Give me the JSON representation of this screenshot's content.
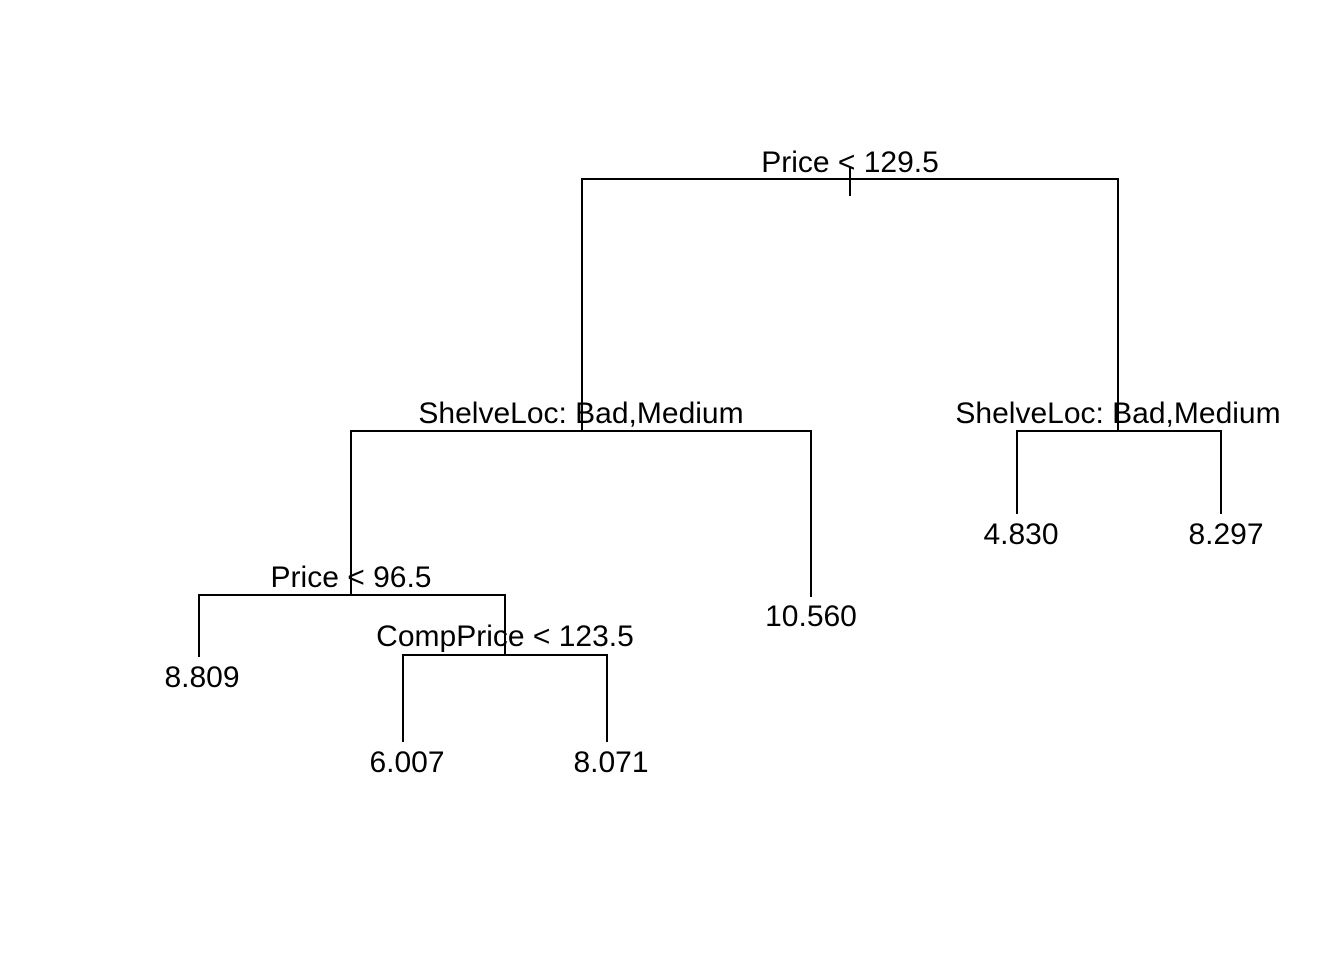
{
  "tree": {
    "nodes": {
      "root": {
        "split": "Price < 129.5",
        "left": "n_left",
        "right": "n_right"
      },
      "n_left": {
        "split": "ShelveLoc: Bad,Medium",
        "left": "n_ll",
        "right": "leaf_10560"
      },
      "n_right": {
        "split": "ShelveLoc: Bad,Medium",
        "left": "leaf_4830",
        "right": "leaf_8297"
      },
      "n_ll": {
        "split": "Price < 96.5",
        "left": "leaf_8809",
        "right": "n_llr"
      },
      "n_llr": {
        "split": "CompPrice < 123.5",
        "left": "leaf_6007",
        "right": "leaf_8071"
      },
      "leaf_10560": {
        "value": "10.560"
      },
      "leaf_4830": {
        "value": "4.830"
      },
      "leaf_8297": {
        "value": "8.297"
      },
      "leaf_8809": {
        "value": "8.809"
      },
      "leaf_6007": {
        "value": "6.007"
      },
      "leaf_8071": {
        "value": "8.071"
      }
    }
  }
}
